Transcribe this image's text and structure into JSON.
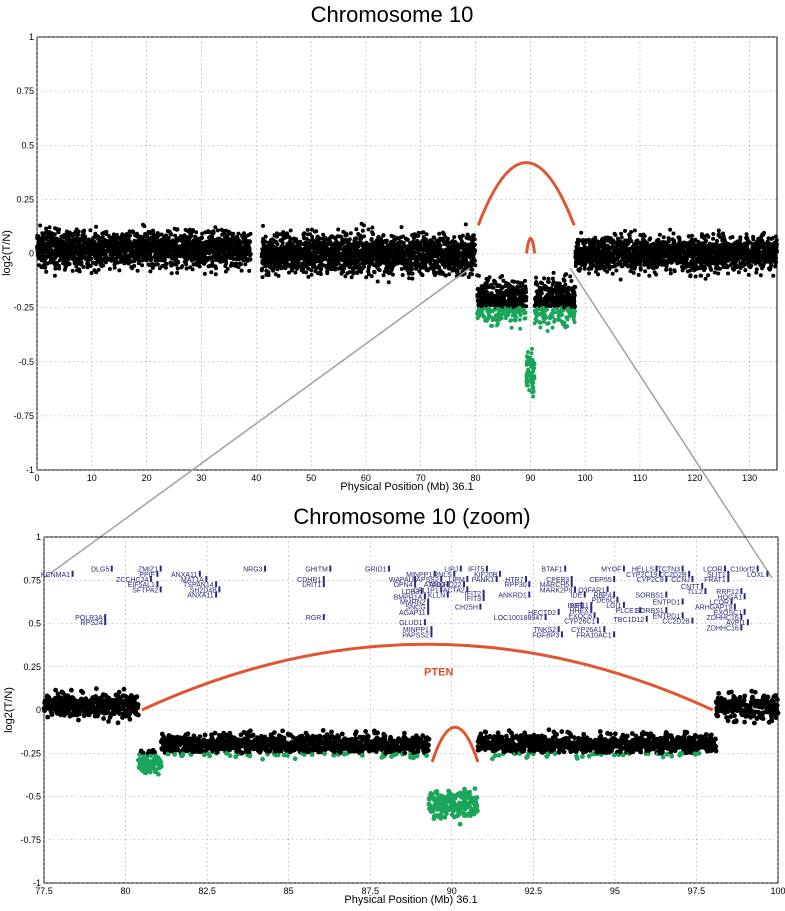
{
  "chart_data": [
    {
      "type": "scatter",
      "title": "Chromosome 10",
      "xlabel": "Physical Position (Mb) 36.1",
      "ylabel": "log2(T/N)",
      "xlim": [
        0,
        135
      ],
      "ylim": [
        -1,
        1
      ],
      "xticks": [
        "0",
        "10",
        "20",
        "30",
        "40",
        "50",
        "60",
        "70",
        "80",
        "90",
        "100",
        "110",
        "120",
        "130"
      ],
      "yticks": [
        "-1",
        "-0.75",
        "-0.5",
        "-0.25",
        "0",
        "0.25",
        "0.5",
        "0.75",
        "1"
      ],
      "grid": true,
      "colors": {
        "normal": "#000000",
        "loss": "#1aa55a",
        "arc": "#e05530"
      },
      "segments": [
        {
          "x": [
            0,
            39
          ],
          "mean": 0.02,
          "spread": 0.08
        },
        {
          "x": [
            41,
            80
          ],
          "mean": 0.0,
          "spread": 0.09
        },
        {
          "x": [
            80.3,
            89.3
          ],
          "mean": -0.22,
          "spread": 0.1
        },
        {
          "x": [
            89.3,
            90.8
          ],
          "mean": -0.55,
          "spread": 0.1
        },
        {
          "x": [
            90.8,
            98.2
          ],
          "mean": -0.22,
          "spread": 0.1
        },
        {
          "x": [
            98.2,
            135
          ],
          "mean": 0.0,
          "spread": 0.08
        }
      ],
      "loss_threshold": -0.25,
      "arcs": [
        {
          "x": [
            80.5,
            98
          ],
          "peak": 0.42,
          "base": 0.13
        },
        {
          "x": [
            89.3,
            90.8
          ],
          "peak": 0.07,
          "base": 0.0
        }
      ]
    },
    {
      "type": "scatter",
      "title": "Chromosome 10  (zoom)",
      "xlabel": "Physical Position (Mb) 36.1",
      "ylabel": "log2(T/N)",
      "xlim": [
        77.5,
        100
      ],
      "ylim": [
        -1,
        1
      ],
      "xticks": [
        "77.5",
        "80",
        "82.5",
        "85",
        "87.5",
        "90",
        "92.5",
        "95",
        "97.5",
        "100"
      ],
      "yticks": [
        "-1",
        "-0.75",
        "-0.5",
        "-0.25",
        "0",
        "0.25",
        "0.5",
        "0.75",
        "1"
      ],
      "grid": true,
      "colors": {
        "normal": "#000000",
        "loss": "#1aa55a",
        "arc": "#e05530"
      },
      "segments": [
        {
          "x": [
            77.5,
            80.4
          ],
          "mean": 0.03,
          "spread": 0.07
        },
        {
          "x": [
            80.4,
            81.1
          ],
          "mean": -0.3,
          "spread": 0.07
        },
        {
          "x": [
            81.1,
            89.3
          ],
          "mean": -0.2,
          "spread": 0.06
        },
        {
          "x": [
            89.3,
            90.8
          ],
          "mean": -0.55,
          "spread": 0.08
        },
        {
          "x": [
            90.8,
            98.1
          ],
          "mean": -0.2,
          "spread": 0.06
        },
        {
          "x": [
            98.1,
            100
          ],
          "mean": 0.02,
          "spread": 0.07
        }
      ],
      "loss_threshold": -0.25,
      "arcs": [
        {
          "x": [
            80.5,
            98
          ],
          "peak": 0.38,
          "base": 0.0
        },
        {
          "x": [
            89.4,
            90.8
          ],
          "peak": -0.1,
          "base": -0.3
        }
      ],
      "pten": {
        "label": "PTEN",
        "x": 89.6,
        "y": 0.2
      },
      "genes": [
        {
          "name": "DLG5",
          "x": 79.5,
          "y": 0.8
        },
        {
          "name": "KCNMA1",
          "x": 78.3,
          "y": 0.77
        },
        {
          "name": "ZMIZ1",
          "x": 81.0,
          "y": 0.8
        },
        {
          "name": "PPIF",
          "x": 80.9,
          "y": 0.77
        },
        {
          "name": "ZCCHC24",
          "x": 80.7,
          "y": 0.74
        },
        {
          "name": "EIF5AL1",
          "x": 80.9,
          "y": 0.71
        },
        {
          "name": "SFTPA2",
          "x": 81.0,
          "y": 0.68
        },
        {
          "name": "POLR3A",
          "x": 79.3,
          "y": 0.52
        },
        {
          "name": "RPS24",
          "x": 79.3,
          "y": 0.49
        },
        {
          "name": "ANXA11",
          "x": 82.2,
          "y": 0.77
        },
        {
          "name": "MAT1A",
          "x": 82.4,
          "y": 0.74
        },
        {
          "name": "TSPAN14",
          "x": 82.7,
          "y": 0.71
        },
        {
          "name": "SH2D4B",
          "x": 82.8,
          "y": 0.68
        },
        {
          "name": "ANXA11",
          "x": 82.7,
          "y": 0.65
        },
        {
          "name": "NRG3",
          "x": 84.2,
          "y": 0.8
        },
        {
          "name": "GHITM",
          "x": 86.2,
          "y": 0.8
        },
        {
          "name": "CDHR1",
          "x": 86.0,
          "y": 0.74
        },
        {
          "name": "LRIT1",
          "x": 86.0,
          "y": 0.71
        },
        {
          "name": "RGR",
          "x": 86.0,
          "y": 0.52
        },
        {
          "name": "GRID1",
          "x": 88.0,
          "y": 0.8
        },
        {
          "name": "MINPP1",
          "x": 89.4,
          "y": 0.77
        },
        {
          "name": "WAPAL",
          "x": 88.8,
          "y": 0.74
        },
        {
          "name": "OPN4",
          "x": 88.8,
          "y": 0.71
        },
        {
          "name": "LDB3",
          "x": 89.0,
          "y": 0.67
        },
        {
          "name": "BMPR1A",
          "x": 89.1,
          "y": 0.64
        },
        {
          "name": "MMRN2",
          "x": 89.2,
          "y": 0.61
        },
        {
          "name": "SNCG",
          "x": 89.2,
          "y": 0.58
        },
        {
          "name": "AGAP11",
          "x": 89.2,
          "y": 0.55
        },
        {
          "name": "GLUD1",
          "x": 89.1,
          "y": 0.49
        },
        {
          "name": "PAPSS2",
          "x": 89.6,
          "y": 0.74
        },
        {
          "name": "ATAD1",
          "x": 89.8,
          "y": 0.71
        },
        {
          "name": "CFL1P1",
          "x": 89.6,
          "y": 0.68
        },
        {
          "name": "KLLN",
          "x": 89.8,
          "y": 0.65
        },
        {
          "name": "MINPP1",
          "x": 89.3,
          "y": 0.45
        },
        {
          "name": "PAPSS2",
          "x": 89.3,
          "y": 0.42
        },
        {
          "name": "LIPJ",
          "x": 90.2,
          "y": 0.8
        },
        {
          "name": "RNLS",
          "x": 90.0,
          "y": 0.77
        },
        {
          "name": "LIPM",
          "x": 90.4,
          "y": 0.74
        },
        {
          "name": "ANKRD22",
          "x": 90.3,
          "y": 0.71
        },
        {
          "name": "ACTA2",
          "x": 90.4,
          "y": 0.68
        },
        {
          "name": "IFIT5",
          "x": 91.0,
          "y": 0.8
        },
        {
          "name": "KIF20B",
          "x": 91.4,
          "y": 0.77
        },
        {
          "name": "PANK1",
          "x": 91.3,
          "y": 0.74
        },
        {
          "name": "IFIT2",
          "x": 90.9,
          "y": 0.66
        },
        {
          "name": "IFIT3",
          "x": 90.9,
          "y": 0.63
        },
        {
          "name": "CH25H",
          "x": 90.8,
          "y": 0.58
        },
        {
          "name": "HTR7",
          "x": 92.2,
          "y": 0.74
        },
        {
          "name": "RPP30",
          "x": 92.3,
          "y": 0.71
        },
        {
          "name": "ANKRD1",
          "x": 92.3,
          "y": 0.65
        },
        {
          "name": "BTAF1",
          "x": 93.4,
          "y": 0.8
        },
        {
          "name": "CPEB3",
          "x": 93.6,
          "y": 0.74
        },
        {
          "name": "MARCH5",
          "x": 93.6,
          "y": 0.71
        },
        {
          "name": "MARK2P9",
          "x": 93.7,
          "y": 0.68
        },
        {
          "name": "IDE",
          "x": 94.0,
          "y": 0.65
        },
        {
          "name": "IDE",
          "x": 93.9,
          "y": 0.59
        },
        {
          "name": "HECTD2",
          "x": 93.2,
          "y": 0.55
        },
        {
          "name": "LOC100188947",
          "x": 92.8,
          "y": 0.52
        },
        {
          "name": "TNKS2",
          "x": 93.2,
          "y": 0.45
        },
        {
          "name": "FGFBP3",
          "x": 93.3,
          "y": 0.42
        },
        {
          "name": "MYOF",
          "x": 95.2,
          "y": 0.8
        },
        {
          "name": "CEP55",
          "x": 94.9,
          "y": 0.74
        },
        {
          "name": "O3FAR1",
          "x": 94.7,
          "y": 0.68
        },
        {
          "name": "RBP4",
          "x": 94.9,
          "y": 0.65
        },
        {
          "name": "PDE6C",
          "x": 95.0,
          "y": 0.62
        },
        {
          "name": "KIF11",
          "x": 94.2,
          "y": 0.59
        },
        {
          "name": "LGI1",
          "x": 95.2,
          "y": 0.59
        },
        {
          "name": "HHEX",
          "x": 94.2,
          "y": 0.56
        },
        {
          "name": "EXOC6",
          "x": 94.3,
          "y": 0.53
        },
        {
          "name": "PLCE1",
          "x": 95.7,
          "y": 0.56
        },
        {
          "name": "TBC1D12",
          "x": 95.9,
          "y": 0.51
        },
        {
          "name": "CYP26C1",
          "x": 94.4,
          "y": 0.5
        },
        {
          "name": "CYP26A1",
          "x": 94.6,
          "y": 0.45
        },
        {
          "name": "FRA10AC1",
          "x": 94.9,
          "y": 0.42
        },
        {
          "name": "HELLS",
          "x": 96.2,
          "y": 0.8
        },
        {
          "name": "CYP2C19",
          "x": 96.3,
          "y": 0.77
        },
        {
          "name": "CYP2C9",
          "x": 96.5,
          "y": 0.74
        },
        {
          "name": "SORBS1",
          "x": 96.5,
          "y": 0.65
        },
        {
          "name": "SORBS1",
          "x": 96.5,
          "y": 0.56
        },
        {
          "name": "TCTN3",
          "x": 97.0,
          "y": 0.8
        },
        {
          "name": "CC2D2B",
          "x": 97.2,
          "y": 0.77
        },
        {
          "name": "CCNJ",
          "x": 97.3,
          "y": 0.74
        },
        {
          "name": "CNTT",
          "x": 97.6,
          "y": 0.7
        },
        {
          "name": "TLL2",
          "x": 97.7,
          "y": 0.67
        },
        {
          "name": "ENTPD1",
          "x": 97.0,
          "y": 0.61
        },
        {
          "name": "ENTPD1",
          "x": 97.0,
          "y": 0.53
        },
        {
          "name": "CC2D2B",
          "x": 97.3,
          "y": 0.5
        },
        {
          "name": "LCOR",
          "x": 98.3,
          "y": 0.8
        },
        {
          "name": "SLIT1",
          "x": 98.4,
          "y": 0.77
        },
        {
          "name": "FRAT1",
          "x": 98.4,
          "y": 0.74
        },
        {
          "name": "RRP12",
          "x": 98.8,
          "y": 0.67
        },
        {
          "name": "HOGA1",
          "x": 98.9,
          "y": 0.64
        },
        {
          "name": "LCOR",
          "x": 98.5,
          "y": 0.61
        },
        {
          "name": "ARHGAP19",
          "x": 98.6,
          "y": 0.58
        },
        {
          "name": "EXOSC1",
          "x": 98.9,
          "y": 0.55
        },
        {
          "name": "ZDHHC16",
          "x": 98.8,
          "y": 0.52
        },
        {
          "name": "AVPI1",
          "x": 99.0,
          "y": 0.49
        },
        {
          "name": "ZDHHC16",
          "x": 98.8,
          "y": 0.46
        },
        {
          "name": "C10orf2",
          "x": 99.3,
          "y": 0.8
        },
        {
          "name": "LOXL",
          "x": 99.6,
          "y": 0.77
        }
      ]
    }
  ]
}
